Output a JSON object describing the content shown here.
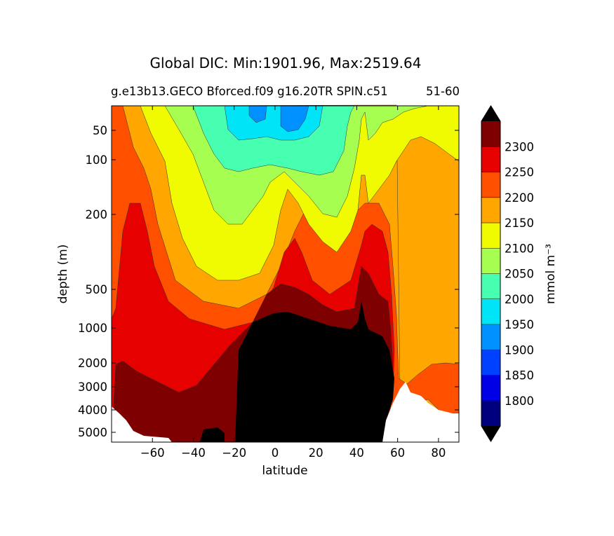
{
  "chart_data": {
    "type": "contour",
    "title": "Global DIC: Min:1901.96, Max:2519.64",
    "subtitle": "g.e13b13.GECO Bforced.f09 g16.20TR SPIN.c51",
    "subtitle_suffix": "51-60",
    "xlabel": "latitude",
    "ylabel": "depth (m)",
    "xlim": [
      -80,
      90
    ],
    "ylim_depth": [
      5500,
      0
    ],
    "y_scale": "log-like (depth)",
    "x_ticks": [
      -60,
      -40,
      -20,
      0,
      20,
      40,
      60,
      80
    ],
    "x_tick_labels": [
      "−60",
      "−40",
      "−20",
      "0",
      "20",
      "40",
      "60",
      "80"
    ],
    "y_ticks": [
      50,
      100,
      200,
      500,
      1000,
      2000,
      3000,
      4000,
      5000
    ],
    "y_tick_labels": [
      "50",
      "100",
      "200",
      "500",
      "1000",
      "2000",
      "3000",
      "4000",
      "5000"
    ],
    "colorbar": {
      "label": "mmol m⁻³",
      "levels": [
        1800,
        1850,
        1900,
        1950,
        2000,
        2050,
        2100,
        2150,
        2200,
        2250,
        2300
      ],
      "level_labels": [
        "1800",
        "1850",
        "1900",
        "1950",
        "2000",
        "2050",
        "2100",
        "2150",
        "2200",
        "2250",
        "2300"
      ],
      "colors": [
        "#00007f",
        "#0000e6",
        "#0040ff",
        "#0090ff",
        "#00e4f8",
        "#47ffb0",
        "#a6ff50",
        "#f0fa00",
        "#ffa600",
        "#ff5000",
        "#e60000",
        "#7f0000"
      ],
      "over_color": "#000000",
      "under_color": "#000000",
      "extend": "both"
    },
    "annotations": {
      "land_or_missing_color": "#ffffff",
      "values_above_range_color": "#000000"
    }
  }
}
